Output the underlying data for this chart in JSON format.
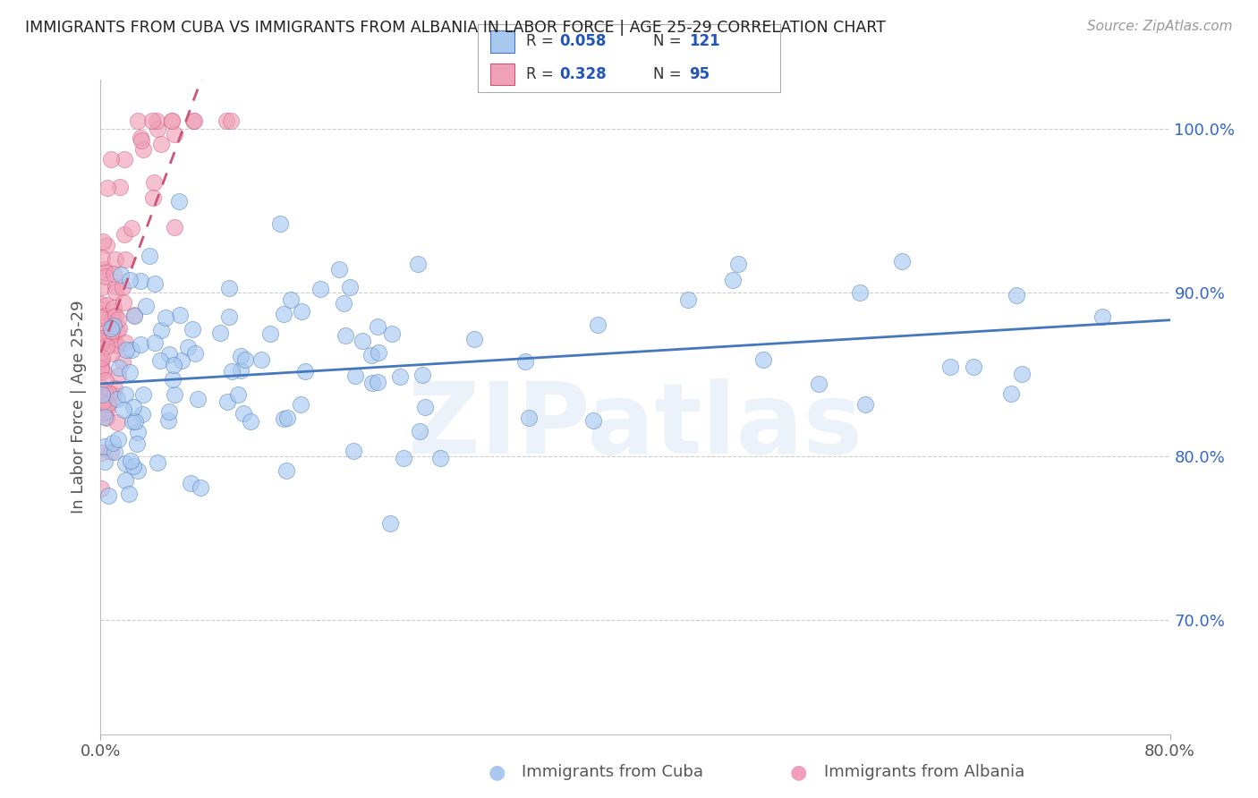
{
  "title": "IMMIGRANTS FROM CUBA VS IMMIGRANTS FROM ALBANIA IN LABOR FORCE | AGE 25-29 CORRELATION CHART",
  "source": "Source: ZipAtlas.com",
  "ylabel": "In Labor Force | Age 25-29",
  "watermark": "ZIPatlas",
  "legend_r1": "0.058",
  "legend_n1": "121",
  "legend_r2": "0.328",
  "legend_n2": "95",
  "xlim": [
    0.0,
    0.8
  ],
  "ylim": [
    0.63,
    1.03
  ],
  "yticks": [
    0.7,
    0.8,
    0.9,
    1.0
  ],
  "ytick_labels": [
    "70.0%",
    "80.0%",
    "90.0%",
    "100.0%"
  ],
  "color_cuba": "#a8c8f0",
  "color_albania": "#f0a0b8",
  "color_trend_cuba": "#4477bb",
  "color_trend_albania": "#cc5577",
  "background_color": "#ffffff",
  "grid_color": "#cccccc",
  "title_color": "#222222",
  "legend_text_color": "#2255bb",
  "right_tick_color": "#3366cc"
}
